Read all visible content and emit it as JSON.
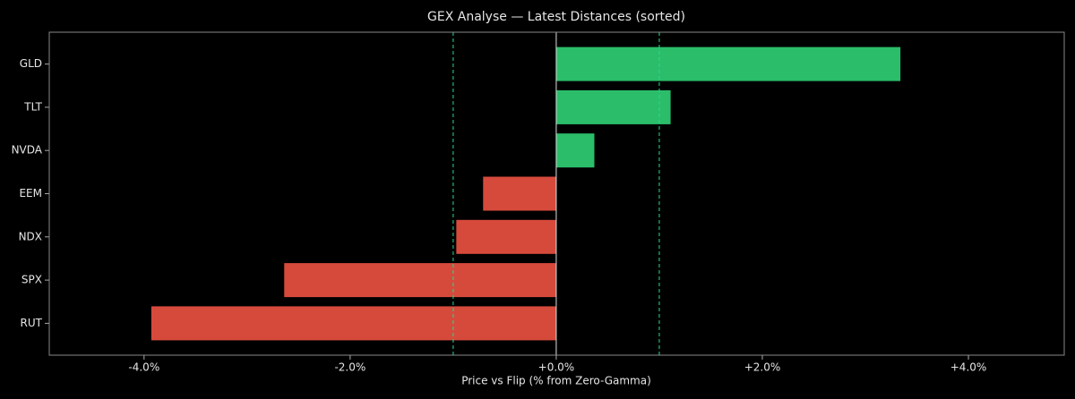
{
  "chart_data": {
    "type": "hbar",
    "title": "GEX Analyse — Latest Distances (sorted)",
    "x_label": "Price vs Flip (% from Zero-Gamma)",
    "categories": [
      "GLD",
      "TLT",
      "NVDA",
      "EEM",
      "NDX",
      "SPX",
      "RUT"
    ],
    "values": [
      3.34,
      1.11,
      0.37,
      -0.71,
      -0.97,
      -2.64,
      -3.93
    ],
    "positive_color": "#2bbd6a",
    "negative_color": "#d64a3c",
    "xlim": [
      -4.92,
      4.93
    ],
    "xticks": [
      {
        "value": -4,
        "label": "-4.0%"
      },
      {
        "value": -2,
        "label": "-2.0%"
      },
      {
        "value": 0,
        "label": "+0.0%"
      },
      {
        "value": 2,
        "label": "+2.0%"
      },
      {
        "value": 4,
        "label": "+4.0%"
      }
    ],
    "threshold_lines": [
      -1,
      1
    ],
    "threshold_color": "#2bd98a"
  }
}
